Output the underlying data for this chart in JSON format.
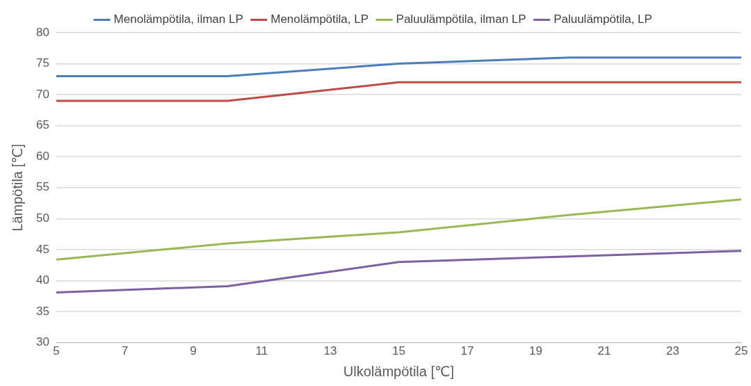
{
  "chart_data": {
    "type": "line",
    "xlabel": "Ulkolämpötila [℃]",
    "ylabel": "Lämpötila [℃]",
    "x": [
      5,
      10,
      15,
      20,
      25
    ],
    "series": [
      {
        "name": "Menolämpötila, ilman LP",
        "color": "#4a7ebb",
        "values": [
          73,
          73,
          75,
          76,
          76
        ]
      },
      {
        "name": "Menolämpötila, LP",
        "color": "#be4b48",
        "values": [
          69,
          69,
          72,
          72,
          72
        ]
      },
      {
        "name": "Paluulämpötila, ilman LP",
        "color": "#98b954",
        "values": [
          43.4,
          46.0,
          47.8,
          50.6,
          53.1
        ]
      },
      {
        "name": "Paluulämpötila, LP",
        "color": "#7d60a0",
        "values": [
          38.1,
          39.1,
          43.0,
          43.9,
          44.8
        ]
      }
    ],
    "xlim": [
      5,
      25
    ],
    "xticks": [
      5,
      7,
      9,
      11,
      13,
      15,
      17,
      19,
      21,
      23,
      25
    ],
    "ylim": [
      30,
      80
    ],
    "yticks": [
      30,
      35,
      40,
      45,
      50,
      55,
      60,
      65,
      70,
      75,
      80
    ],
    "grid": "y",
    "legend": "top",
    "marker": "none",
    "line_style": "solid"
  }
}
